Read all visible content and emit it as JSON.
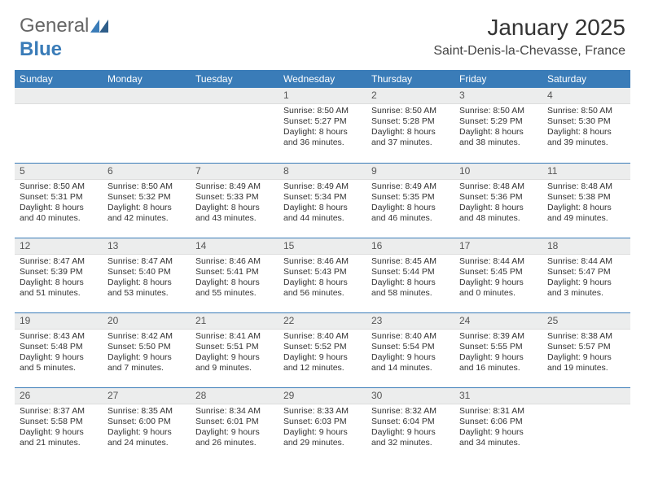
{
  "logo": {
    "text1": "General",
    "text2": "Blue"
  },
  "title": "January 2025",
  "location": "Saint-Denis-la-Chevasse, France",
  "colors": {
    "header_bg": "#3a7cb8",
    "header_text": "#ffffff",
    "daynum_bg": "#eceded",
    "border": "#3a7cb8",
    "text": "#333333",
    "page_bg": "#ffffff"
  },
  "weekdays": [
    "Sunday",
    "Monday",
    "Tuesday",
    "Wednesday",
    "Thursday",
    "Friday",
    "Saturday"
  ],
  "weeks": [
    [
      {
        "day": ""
      },
      {
        "day": ""
      },
      {
        "day": ""
      },
      {
        "day": "1",
        "sunrise": "Sunrise: 8:50 AM",
        "sunset": "Sunset: 5:27 PM",
        "daylight1": "Daylight: 8 hours",
        "daylight2": "and 36 minutes."
      },
      {
        "day": "2",
        "sunrise": "Sunrise: 8:50 AM",
        "sunset": "Sunset: 5:28 PM",
        "daylight1": "Daylight: 8 hours",
        "daylight2": "and 37 minutes."
      },
      {
        "day": "3",
        "sunrise": "Sunrise: 8:50 AM",
        "sunset": "Sunset: 5:29 PM",
        "daylight1": "Daylight: 8 hours",
        "daylight2": "and 38 minutes."
      },
      {
        "day": "4",
        "sunrise": "Sunrise: 8:50 AM",
        "sunset": "Sunset: 5:30 PM",
        "daylight1": "Daylight: 8 hours",
        "daylight2": "and 39 minutes."
      }
    ],
    [
      {
        "day": "5",
        "sunrise": "Sunrise: 8:50 AM",
        "sunset": "Sunset: 5:31 PM",
        "daylight1": "Daylight: 8 hours",
        "daylight2": "and 40 minutes."
      },
      {
        "day": "6",
        "sunrise": "Sunrise: 8:50 AM",
        "sunset": "Sunset: 5:32 PM",
        "daylight1": "Daylight: 8 hours",
        "daylight2": "and 42 minutes."
      },
      {
        "day": "7",
        "sunrise": "Sunrise: 8:49 AM",
        "sunset": "Sunset: 5:33 PM",
        "daylight1": "Daylight: 8 hours",
        "daylight2": "and 43 minutes."
      },
      {
        "day": "8",
        "sunrise": "Sunrise: 8:49 AM",
        "sunset": "Sunset: 5:34 PM",
        "daylight1": "Daylight: 8 hours",
        "daylight2": "and 44 minutes."
      },
      {
        "day": "9",
        "sunrise": "Sunrise: 8:49 AM",
        "sunset": "Sunset: 5:35 PM",
        "daylight1": "Daylight: 8 hours",
        "daylight2": "and 46 minutes."
      },
      {
        "day": "10",
        "sunrise": "Sunrise: 8:48 AM",
        "sunset": "Sunset: 5:36 PM",
        "daylight1": "Daylight: 8 hours",
        "daylight2": "and 48 minutes."
      },
      {
        "day": "11",
        "sunrise": "Sunrise: 8:48 AM",
        "sunset": "Sunset: 5:38 PM",
        "daylight1": "Daylight: 8 hours",
        "daylight2": "and 49 minutes."
      }
    ],
    [
      {
        "day": "12",
        "sunrise": "Sunrise: 8:47 AM",
        "sunset": "Sunset: 5:39 PM",
        "daylight1": "Daylight: 8 hours",
        "daylight2": "and 51 minutes."
      },
      {
        "day": "13",
        "sunrise": "Sunrise: 8:47 AM",
        "sunset": "Sunset: 5:40 PM",
        "daylight1": "Daylight: 8 hours",
        "daylight2": "and 53 minutes."
      },
      {
        "day": "14",
        "sunrise": "Sunrise: 8:46 AM",
        "sunset": "Sunset: 5:41 PM",
        "daylight1": "Daylight: 8 hours",
        "daylight2": "and 55 minutes."
      },
      {
        "day": "15",
        "sunrise": "Sunrise: 8:46 AM",
        "sunset": "Sunset: 5:43 PM",
        "daylight1": "Daylight: 8 hours",
        "daylight2": "and 56 minutes."
      },
      {
        "day": "16",
        "sunrise": "Sunrise: 8:45 AM",
        "sunset": "Sunset: 5:44 PM",
        "daylight1": "Daylight: 8 hours",
        "daylight2": "and 58 minutes."
      },
      {
        "day": "17",
        "sunrise": "Sunrise: 8:44 AM",
        "sunset": "Sunset: 5:45 PM",
        "daylight1": "Daylight: 9 hours",
        "daylight2": "and 0 minutes."
      },
      {
        "day": "18",
        "sunrise": "Sunrise: 8:44 AM",
        "sunset": "Sunset: 5:47 PM",
        "daylight1": "Daylight: 9 hours",
        "daylight2": "and 3 minutes."
      }
    ],
    [
      {
        "day": "19",
        "sunrise": "Sunrise: 8:43 AM",
        "sunset": "Sunset: 5:48 PM",
        "daylight1": "Daylight: 9 hours",
        "daylight2": "and 5 minutes."
      },
      {
        "day": "20",
        "sunrise": "Sunrise: 8:42 AM",
        "sunset": "Sunset: 5:50 PM",
        "daylight1": "Daylight: 9 hours",
        "daylight2": "and 7 minutes."
      },
      {
        "day": "21",
        "sunrise": "Sunrise: 8:41 AM",
        "sunset": "Sunset: 5:51 PM",
        "daylight1": "Daylight: 9 hours",
        "daylight2": "and 9 minutes."
      },
      {
        "day": "22",
        "sunrise": "Sunrise: 8:40 AM",
        "sunset": "Sunset: 5:52 PM",
        "daylight1": "Daylight: 9 hours",
        "daylight2": "and 12 minutes."
      },
      {
        "day": "23",
        "sunrise": "Sunrise: 8:40 AM",
        "sunset": "Sunset: 5:54 PM",
        "daylight1": "Daylight: 9 hours",
        "daylight2": "and 14 minutes."
      },
      {
        "day": "24",
        "sunrise": "Sunrise: 8:39 AM",
        "sunset": "Sunset: 5:55 PM",
        "daylight1": "Daylight: 9 hours",
        "daylight2": "and 16 minutes."
      },
      {
        "day": "25",
        "sunrise": "Sunrise: 8:38 AM",
        "sunset": "Sunset: 5:57 PM",
        "daylight1": "Daylight: 9 hours",
        "daylight2": "and 19 minutes."
      }
    ],
    [
      {
        "day": "26",
        "sunrise": "Sunrise: 8:37 AM",
        "sunset": "Sunset: 5:58 PM",
        "daylight1": "Daylight: 9 hours",
        "daylight2": "and 21 minutes."
      },
      {
        "day": "27",
        "sunrise": "Sunrise: 8:35 AM",
        "sunset": "Sunset: 6:00 PM",
        "daylight1": "Daylight: 9 hours",
        "daylight2": "and 24 minutes."
      },
      {
        "day": "28",
        "sunrise": "Sunrise: 8:34 AM",
        "sunset": "Sunset: 6:01 PM",
        "daylight1": "Daylight: 9 hours",
        "daylight2": "and 26 minutes."
      },
      {
        "day": "29",
        "sunrise": "Sunrise: 8:33 AM",
        "sunset": "Sunset: 6:03 PM",
        "daylight1": "Daylight: 9 hours",
        "daylight2": "and 29 minutes."
      },
      {
        "day": "30",
        "sunrise": "Sunrise: 8:32 AM",
        "sunset": "Sunset: 6:04 PM",
        "daylight1": "Daylight: 9 hours",
        "daylight2": "and 32 minutes."
      },
      {
        "day": "31",
        "sunrise": "Sunrise: 8:31 AM",
        "sunset": "Sunset: 6:06 PM",
        "daylight1": "Daylight: 9 hours",
        "daylight2": "and 34 minutes."
      },
      {
        "day": ""
      }
    ]
  ]
}
